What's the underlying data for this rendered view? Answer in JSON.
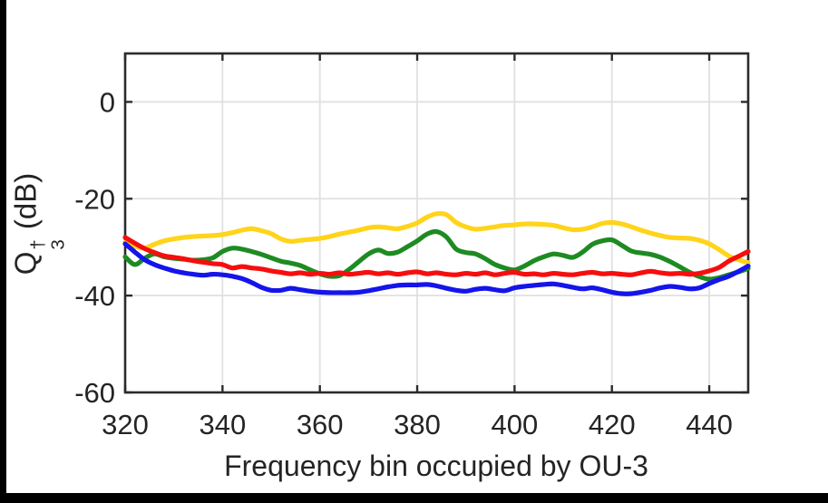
{
  "figure": {
    "background": "#ffffff",
    "border_color": "#000000"
  },
  "chart_data": {
    "type": "line",
    "title": "",
    "xlabel": "Frequency bin occupied by OU-3",
    "ylabel": {
      "base": "Q",
      "subscript": "3",
      "superscript": "†",
      "suffix": " (dB)",
      "text": "Q3† (dB)"
    },
    "xlim": [
      320,
      448
    ],
    "ylim": [
      -60,
      10
    ],
    "x_ticks": [
      320,
      340,
      360,
      380,
      400,
      420,
      440
    ],
    "y_ticks": [
      0,
      -20,
      -40,
      -60
    ],
    "grid": true,
    "grid_color": "#e0e0e0",
    "axis_color": "#2b2b2b",
    "tick_label_color": "#242424",
    "legend": "none",
    "x": [
      320,
      322,
      324,
      326,
      328,
      330,
      332,
      334,
      336,
      338,
      340,
      342,
      344,
      346,
      348,
      350,
      352,
      354,
      356,
      358,
      360,
      362,
      364,
      366,
      368,
      370,
      372,
      374,
      376,
      378,
      380,
      382,
      384,
      386,
      388,
      390,
      392,
      394,
      396,
      398,
      400,
      402,
      404,
      406,
      408,
      410,
      412,
      414,
      416,
      418,
      420,
      422,
      424,
      426,
      428,
      430,
      432,
      434,
      436,
      438,
      440,
      442,
      444,
      446,
      448
    ],
    "series": [
      {
        "name": "yellow-series",
        "color": "#ffd41a",
        "values": [
          -29.0,
          -29.8,
          -30.2,
          -29.4,
          -28.7,
          -28.3,
          -28.0,
          -27.8,
          -27.7,
          -27.6,
          -27.4,
          -27.0,
          -26.5,
          -26.2,
          -26.6,
          -27.2,
          -28.3,
          -28.8,
          -28.6,
          -28.4,
          -28.2,
          -27.8,
          -27.3,
          -26.9,
          -26.5,
          -26.0,
          -25.8,
          -26.0,
          -26.2,
          -25.7,
          -25.0,
          -23.8,
          -23.1,
          -23.3,
          -24.9,
          -25.8,
          -26.3,
          -26.1,
          -25.8,
          -25.5,
          -25.4,
          -25.2,
          -25.2,
          -25.3,
          -25.5,
          -26.0,
          -26.4,
          -26.3,
          -25.8,
          -25.1,
          -24.9,
          -25.2,
          -25.8,
          -26.5,
          -27.1,
          -27.6,
          -28.0,
          -28.1,
          -28.2,
          -28.6,
          -29.3,
          -30.5,
          -31.8,
          -32.6,
          -33.2
        ]
      },
      {
        "name": "green-series",
        "color": "#1e8b22",
        "values": [
          -32.0,
          -33.6,
          -32.3,
          -31.4,
          -32.0,
          -32.3,
          -32.5,
          -32.7,
          -32.6,
          -32.2,
          -30.9,
          -30.2,
          -30.4,
          -30.9,
          -31.5,
          -32.2,
          -32.9,
          -33.3,
          -33.8,
          -34.7,
          -35.5,
          -36.0,
          -35.9,
          -34.6,
          -33.0,
          -31.4,
          -30.6,
          -31.3,
          -31.0,
          -29.9,
          -28.7,
          -27.3,
          -26.8,
          -27.9,
          -30.4,
          -31.1,
          -31.4,
          -32.4,
          -33.6,
          -34.3,
          -34.7,
          -33.9,
          -32.8,
          -32.0,
          -31.4,
          -31.7,
          -32.1,
          -31.0,
          -29.4,
          -28.7,
          -28.5,
          -29.6,
          -30.8,
          -31.2,
          -31.5,
          -32.1,
          -33.0,
          -34.1,
          -35.2,
          -36.1,
          -36.6,
          -36.3,
          -35.7,
          -35.1,
          -34.4
        ]
      },
      {
        "name": "blue-series",
        "color": "#1414eb",
        "values": [
          -29.3,
          -31.0,
          -32.6,
          -33.6,
          -34.3,
          -34.9,
          -35.3,
          -35.6,
          -35.8,
          -35.6,
          -35.7,
          -36.0,
          -36.5,
          -37.3,
          -38.3,
          -38.9,
          -38.9,
          -38.5,
          -38.8,
          -39.1,
          -39.3,
          -39.4,
          -39.4,
          -39.4,
          -39.3,
          -39.0,
          -38.6,
          -38.2,
          -37.9,
          -37.8,
          -37.8,
          -37.7,
          -38.0,
          -38.5,
          -38.9,
          -39.1,
          -38.7,
          -38.5,
          -38.8,
          -39.0,
          -38.4,
          -38.1,
          -37.9,
          -37.7,
          -37.6,
          -37.9,
          -38.3,
          -38.6,
          -38.4,
          -38.8,
          -39.3,
          -39.6,
          -39.6,
          -39.3,
          -38.9,
          -38.4,
          -38.1,
          -38.3,
          -38.6,
          -38.4,
          -37.5,
          -36.7,
          -36.0,
          -35.0,
          -33.9
        ]
      },
      {
        "name": "red-series",
        "color": "#f60e0e",
        "values": [
          -28.0,
          -29.2,
          -30.3,
          -31.1,
          -31.8,
          -32.1,
          -32.4,
          -32.8,
          -33.1,
          -33.4,
          -33.6,
          -34.3,
          -34.0,
          -34.3,
          -34.5,
          -34.9,
          -35.2,
          -35.5,
          -35.3,
          -35.6,
          -35.4,
          -35.6,
          -35.3,
          -35.6,
          -35.4,
          -35.2,
          -35.5,
          -35.3,
          -35.6,
          -35.3,
          -35.1,
          -35.5,
          -35.3,
          -35.6,
          -35.7,
          -35.4,
          -35.6,
          -35.3,
          -35.7,
          -35.4,
          -35.2,
          -35.6,
          -35.5,
          -35.7,
          -35.4,
          -35.6,
          -35.7,
          -35.4,
          -35.2,
          -35.5,
          -35.4,
          -35.6,
          -35.7,
          -35.3,
          -35.0,
          -35.3,
          -35.5,
          -35.4,
          -35.6,
          -35.4,
          -34.9,
          -34.2,
          -32.9,
          -31.9,
          -30.9
        ]
      }
    ]
  }
}
